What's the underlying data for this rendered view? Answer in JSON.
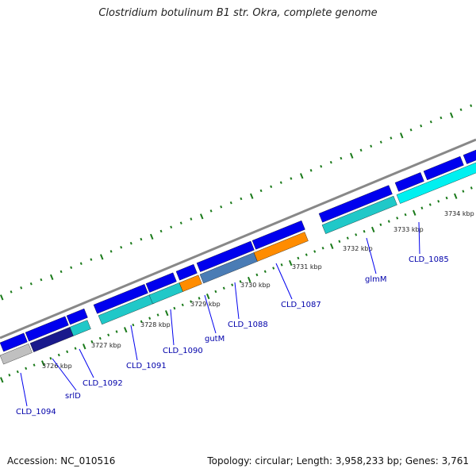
{
  "title": "Clostridium botulinum B1 str. Okra, complete genome",
  "footer": {
    "accession": "Accession: NC_010516",
    "summary": "Topology: circular; Length: 3,958,233 bp; Genes: 3,761"
  },
  "scale_labels": [
    "3726 kbp",
    "3727 kbp",
    "3728 kbp",
    "3729 kbp",
    "3730 kbp",
    "3731 kbp",
    "3732 kbp",
    "3733 kbp",
    "3734 kbp"
  ],
  "gene_labels": [
    "CLD_1094",
    "srlD",
    "CLD_1092",
    "CLD_1091",
    "CLD_1090",
    "gutM",
    "CLD_1088",
    "CLD_1087",
    "glmM",
    "CLD_1085"
  ],
  "colors": {
    "forward": "#0000ee",
    "cyan": "#20c8c8",
    "bright_cyan": "#00f0f0",
    "gray": "#c0c0c0",
    "orange": "#ff8c00",
    "steel": "#4a7cb5",
    "navy": "#1a1a8c",
    "backbone": "#888888",
    "ticks": "#1a7a1a"
  }
}
